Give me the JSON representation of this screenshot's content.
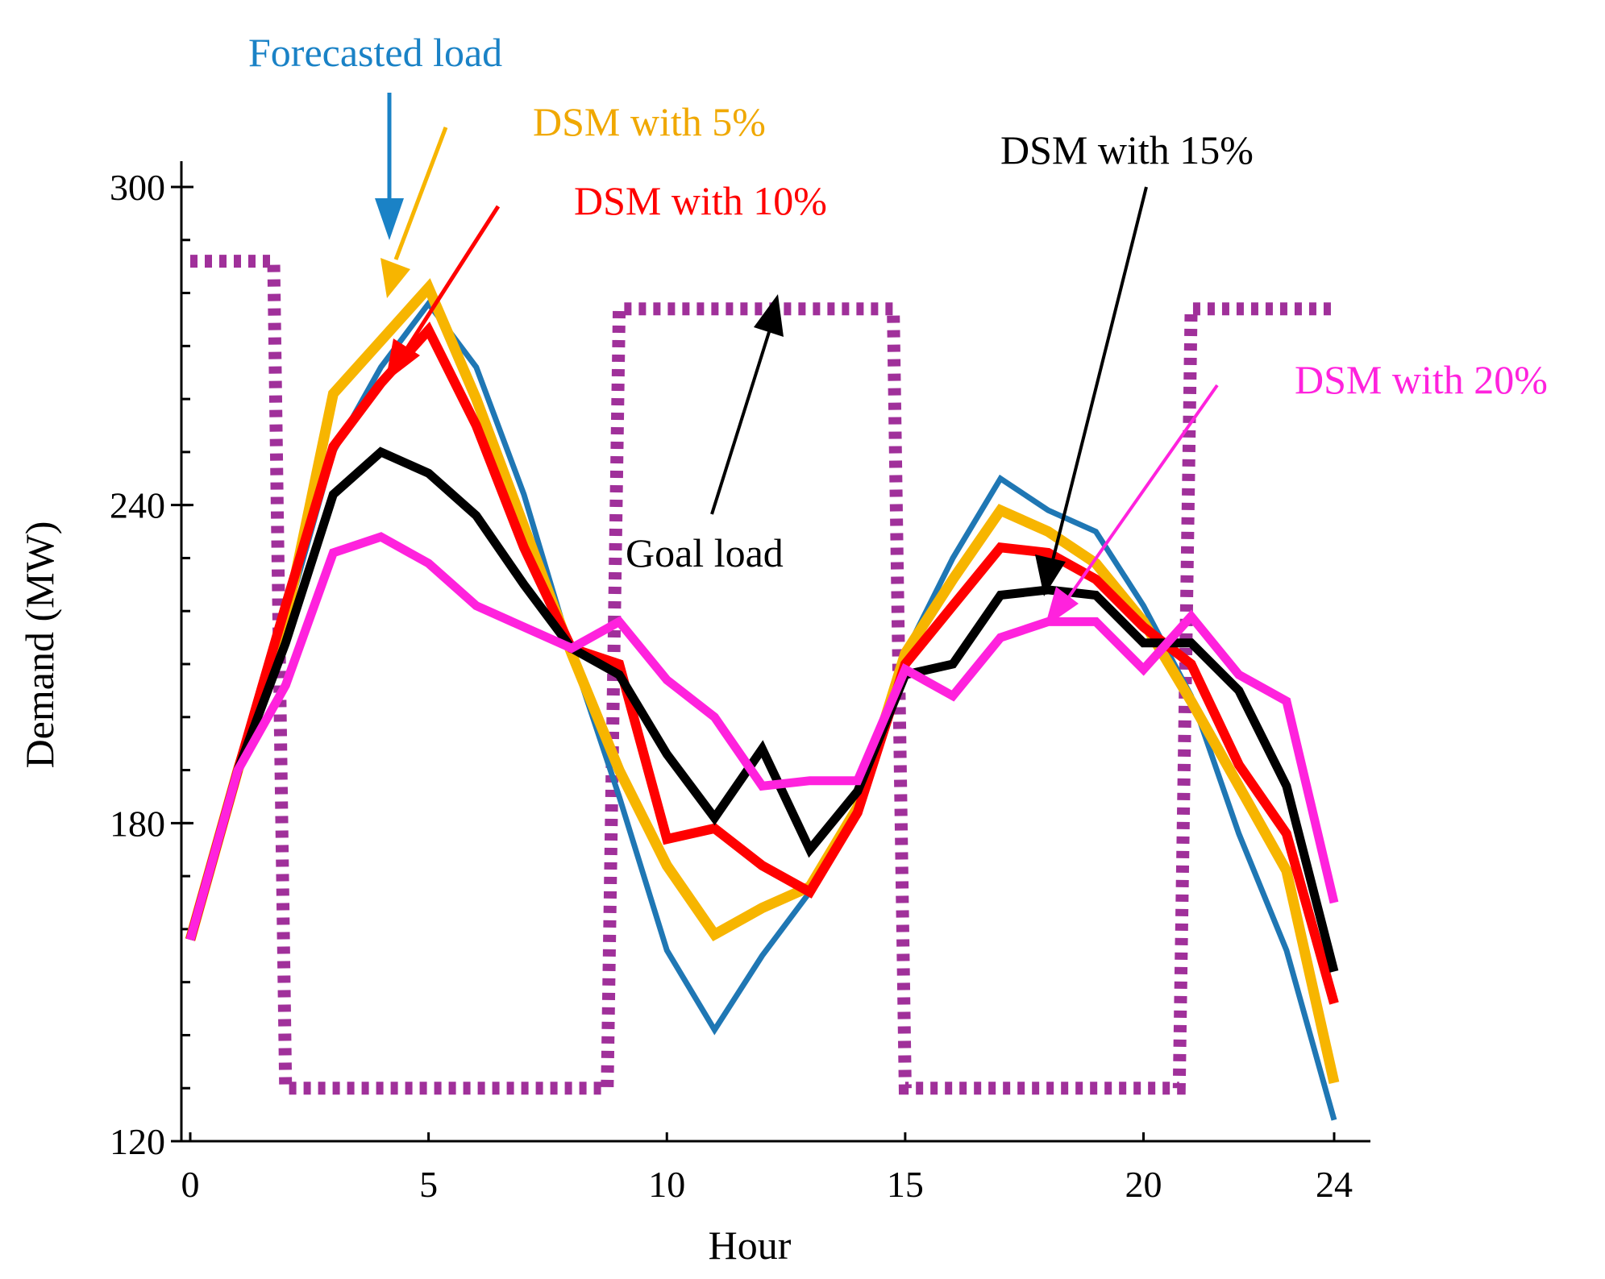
{
  "chart_data": {
    "type": "line",
    "title": "",
    "xlabel": "Hour",
    "ylabel": "Demand (MW)",
    "xlim": [
      0,
      24
    ],
    "ylim": [
      120,
      300
    ],
    "x_ticks": [
      0,
      5,
      10,
      15,
      20,
      24
    ],
    "y_ticks": [
      120,
      180,
      240,
      300
    ],
    "grid": false,
    "x": [
      0,
      1,
      2,
      3,
      4,
      5,
      6,
      7,
      8,
      9,
      10,
      11,
      12,
      13,
      14,
      15,
      16,
      17,
      18,
      19,
      20,
      21,
      22,
      23,
      24
    ],
    "series": [
      {
        "name": "Forecasted load",
        "color": "#1f77b4",
        "style": "solid",
        "values": [
          158,
          190,
          218,
          250,
          266,
          278,
          266,
          242,
          212,
          185,
          156,
          141,
          155,
          167,
          183,
          212,
          230,
          245,
          239,
          235,
          221,
          204,
          178,
          156,
          124
        ]
      },
      {
        "name": "DSM with 5%",
        "color": "#f7b500",
        "style": "solid",
        "values": [
          158,
          190,
          218,
          261,
          271,
          281,
          260,
          236,
          212,
          190,
          172,
          159,
          164,
          168,
          183,
          212,
          226,
          239,
          235,
          229,
          218,
          203,
          187,
          171,
          131
        ]
      },
      {
        "name": "DSM with 10%",
        "color": "#ff0000",
        "style": "solid",
        "values": [
          158,
          190,
          221,
          251,
          263,
          273,
          255,
          232,
          213,
          210,
          177,
          179,
          172,
          167,
          182,
          210,
          221,
          232,
          231,
          226,
          217,
          210,
          191,
          178,
          146
        ]
      },
      {
        "name": "DSM with 15%",
        "color": "#000000",
        "style": "solid",
        "values": [
          158,
          190,
          214,
          242,
          250,
          246,
          238,
          225,
          213,
          208,
          193,
          181,
          194,
          175,
          186,
          208,
          210,
          223,
          224,
          223,
          214,
          214,
          205,
          187,
          152
        ]
      },
      {
        "name": "DSM with 20%",
        "color": "#ff22dd",
        "style": "solid",
        "values": [
          158,
          190,
          206,
          231,
          234,
          229,
          221,
          217,
          213,
          218,
          207,
          200,
          187,
          188,
          188,
          209,
          204,
          215,
          218,
          218,
          209,
          219,
          208,
          203,
          165
        ]
      },
      {
        "name": "Goal load",
        "color": "#a0309a",
        "style": "dotted",
        "values": [
          286,
          286,
          130,
          130,
          130,
          130,
          130,
          130,
          130,
          277,
          277,
          277,
          277,
          277,
          277,
          130,
          130,
          130,
          130,
          130,
          130,
          277,
          277,
          277,
          277
        ]
      }
    ],
    "annotations": [
      {
        "text": "Forecasted load",
        "color": "#1a82c6",
        "points_to_series": "Forecasted load"
      },
      {
        "text": "DSM with 5%",
        "color": "#f0a800",
        "points_to_series": "DSM with 5%"
      },
      {
        "text": "DSM with 10%",
        "color": "#ff0000",
        "points_to_series": "DSM with 10%"
      },
      {
        "text": "DSM with 15%",
        "color": "#000000",
        "points_to_series": "DSM with 15%"
      },
      {
        "text": "DSM with 20%",
        "color": "#ff22dd",
        "points_to_series": "DSM with 20%"
      },
      {
        "text": "Goal load",
        "color": "#000000",
        "points_to_series": "Goal load"
      }
    ]
  }
}
